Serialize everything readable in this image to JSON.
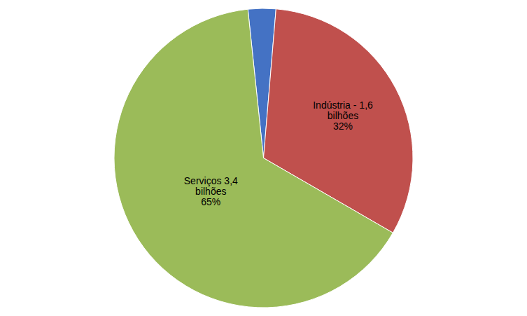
{
  "chart_data": {
    "type": "pie",
    "categories": [
      null,
      "Indústria - 1,6\nbilhões\n32%",
      "Serviços 3,4\nbilhões\n65%"
    ],
    "values": [
      3,
      32,
      65
    ],
    "colors": [
      "#4472C4",
      "#C0504D",
      "#9BBB59"
    ]
  }
}
